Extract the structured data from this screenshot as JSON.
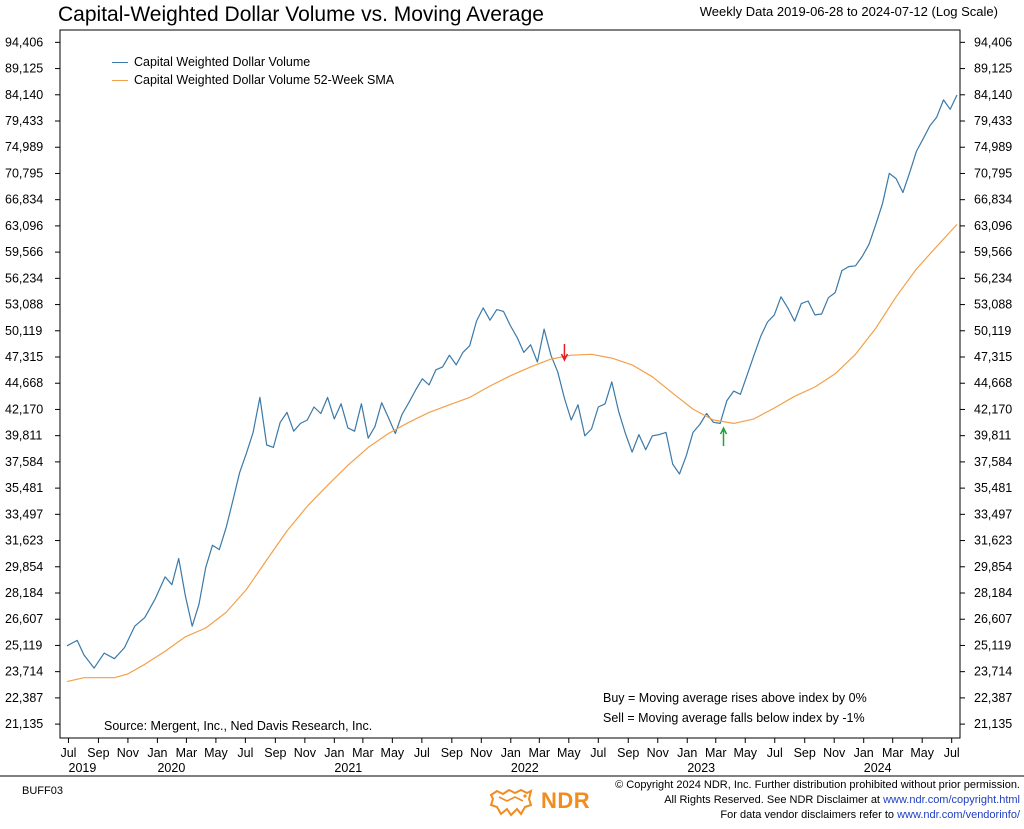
{
  "header": {
    "title": "Capital-Weighted Dollar Volume vs. Moving Average",
    "subtitle": "Weekly Data 2019-06-28 to 2024-07-12 (Log Scale)"
  },
  "legend": {
    "items": [
      {
        "label": "Capital Weighted Dollar Volume",
        "color": "#3a79a8"
      },
      {
        "label": "Capital Weighted Dollar Volume 52-Week SMA",
        "color": "#f4a04a"
      }
    ]
  },
  "source_text": "Source:   Mergent, Inc., Ned Davis Research, Inc.",
  "rules": {
    "buy": "Buy = Moving average rises above index by 0%",
    "sell": "Sell = Moving average falls below index by -1%"
  },
  "footer": {
    "code": "BUFF03",
    "logo_text": "NDR",
    "copyright_line1": "© Copyright 2024 NDR, Inc. Further distribution prohibited without prior permission.",
    "copyright_line2_prefix": "All Rights Reserved. See NDR Disclaimer at ",
    "copyright_line2_link": "www.ndr.com/copyright.html",
    "copyright_line3_prefix": "For data vendor disclaimers refer to ",
    "copyright_line3_link": "www.ndr.com/vendorinfo/"
  },
  "chart_data": {
    "type": "line",
    "scale": "log",
    "ylim": [
      20500,
      97000
    ],
    "y_ticks": [
      21135,
      22387,
      23714,
      25119,
      26607,
      28184,
      29854,
      31623,
      33497,
      35481,
      37584,
      39811,
      42170,
      44668,
      47315,
      50119,
      53088,
      56234,
      59566,
      63096,
      66834,
      70795,
      74989,
      79433,
      84140,
      89125,
      94406
    ],
    "y_tick_labels": [
      "21,135",
      "22,387",
      "23,714",
      "25,119",
      "26,607",
      "28,184",
      "29,854",
      "31,623",
      "33,497",
      "35,481",
      "37,584",
      "39,811",
      "42,170",
      "44,668",
      "47,315",
      "50,119",
      "53,088",
      "56,234",
      "59,566",
      "63,096",
      "66,834",
      "70,795",
      "74,989",
      "79,433",
      "84,140",
      "89,125",
      "94,406"
    ],
    "x_range": [
      "2019-06-28",
      "2024-07-12"
    ],
    "x_ticks": [
      {
        "label": "Jul",
        "date": "2019-07-01"
      },
      {
        "label": "Sep",
        "date": "2019-09-01"
      },
      {
        "label": "Nov",
        "date": "2019-11-01"
      },
      {
        "label": "Jan",
        "date": "2020-01-01"
      },
      {
        "label": "Mar",
        "date": "2020-03-01"
      },
      {
        "label": "May",
        "date": "2020-05-01"
      },
      {
        "label": "Jul",
        "date": "2020-07-01"
      },
      {
        "label": "Sep",
        "date": "2020-09-01"
      },
      {
        "label": "Nov",
        "date": "2020-11-01"
      },
      {
        "label": "Jan",
        "date": "2021-01-01"
      },
      {
        "label": "Mar",
        "date": "2021-03-01"
      },
      {
        "label": "May",
        "date": "2021-05-01"
      },
      {
        "label": "Jul",
        "date": "2021-07-01"
      },
      {
        "label": "Sep",
        "date": "2021-09-01"
      },
      {
        "label": "Nov",
        "date": "2021-11-01"
      },
      {
        "label": "Jan",
        "date": "2022-01-01"
      },
      {
        "label": "Mar",
        "date": "2022-03-01"
      },
      {
        "label": "May",
        "date": "2022-05-01"
      },
      {
        "label": "Jul",
        "date": "2022-07-01"
      },
      {
        "label": "Sep",
        "date": "2022-09-01"
      },
      {
        "label": "Nov",
        "date": "2022-11-01"
      },
      {
        "label": "Jan",
        "date": "2023-01-01"
      },
      {
        "label": "Mar",
        "date": "2023-03-01"
      },
      {
        "label": "May",
        "date": "2023-05-01"
      },
      {
        "label": "Jul",
        "date": "2023-07-01"
      },
      {
        "label": "Sep",
        "date": "2023-09-01"
      },
      {
        "label": "Nov",
        "date": "2023-11-01"
      },
      {
        "label": "Jan",
        "date": "2024-01-01"
      },
      {
        "label": "Mar",
        "date": "2024-03-01"
      },
      {
        "label": "May",
        "date": "2024-05-01"
      },
      {
        "label": "Jul",
        "date": "2024-07-01"
      }
    ],
    "year_labels": [
      {
        "label": "2019",
        "date": "2019-07-01"
      },
      {
        "label": "2020",
        "date": "2020-01-01"
      },
      {
        "label": "2021",
        "date": "2021-01-01"
      },
      {
        "label": "2022",
        "date": "2022-01-01"
      },
      {
        "label": "2023",
        "date": "2023-01-01"
      },
      {
        "label": "2024",
        "date": "2024-01-01"
      }
    ],
    "series": [
      {
        "name": "Capital Weighted Dollar Volume",
        "color": "#3a79a8",
        "points": [
          [
            "2019-06-28",
            25100
          ],
          [
            "2019-07-19",
            25400
          ],
          [
            "2019-08-02",
            24600
          ],
          [
            "2019-08-23",
            23900
          ],
          [
            "2019-09-13",
            24700
          ],
          [
            "2019-10-04",
            24400
          ],
          [
            "2019-10-25",
            25000
          ],
          [
            "2019-11-15",
            26200
          ],
          [
            "2019-12-06",
            26700
          ],
          [
            "2019-12-27",
            27800
          ],
          [
            "2020-01-17",
            29200
          ],
          [
            "2020-01-31",
            28700
          ],
          [
            "2020-02-14",
            30400
          ],
          [
            "2020-02-28",
            28000
          ],
          [
            "2020-03-13",
            26200
          ],
          [
            "2020-03-27",
            27500
          ],
          [
            "2020-04-10",
            29800
          ],
          [
            "2020-04-24",
            31300
          ],
          [
            "2020-05-08",
            31000
          ],
          [
            "2020-05-22",
            32500
          ],
          [
            "2020-06-05",
            34500
          ],
          [
            "2020-06-19",
            36700
          ],
          [
            "2020-07-03",
            38300
          ],
          [
            "2020-07-17",
            40100
          ],
          [
            "2020-07-31",
            43300
          ],
          [
            "2020-08-14",
            39000
          ],
          [
            "2020-08-28",
            38800
          ],
          [
            "2020-09-11",
            41000
          ],
          [
            "2020-09-25",
            41900
          ],
          [
            "2020-10-09",
            40200
          ],
          [
            "2020-10-23",
            40900
          ],
          [
            "2020-11-06",
            41200
          ],
          [
            "2020-11-20",
            42400
          ],
          [
            "2020-12-04",
            41800
          ],
          [
            "2020-12-18",
            43300
          ],
          [
            "2021-01-01",
            41300
          ],
          [
            "2021-01-15",
            42700
          ],
          [
            "2021-01-29",
            40500
          ],
          [
            "2021-02-12",
            40200
          ],
          [
            "2021-02-26",
            42700
          ],
          [
            "2021-03-12",
            39600
          ],
          [
            "2021-03-26",
            40600
          ],
          [
            "2021-04-09",
            42800
          ],
          [
            "2021-04-23",
            41400
          ],
          [
            "2021-05-07",
            40000
          ],
          [
            "2021-05-21",
            41700
          ],
          [
            "2021-06-04",
            42800
          ],
          [
            "2021-06-18",
            44000
          ],
          [
            "2021-07-02",
            45100
          ],
          [
            "2021-07-16",
            44500
          ],
          [
            "2021-07-30",
            46000
          ],
          [
            "2021-08-13",
            46300
          ],
          [
            "2021-08-27",
            47500
          ],
          [
            "2021-09-10",
            46500
          ],
          [
            "2021-09-24",
            47800
          ],
          [
            "2021-10-08",
            48500
          ],
          [
            "2021-10-22",
            51200
          ],
          [
            "2021-11-05",
            52700
          ],
          [
            "2021-11-19",
            51300
          ],
          [
            "2021-12-03",
            52500
          ],
          [
            "2021-12-17",
            52300
          ],
          [
            "2021-12-31",
            50700
          ],
          [
            "2022-01-14",
            49400
          ],
          [
            "2022-01-28",
            47800
          ],
          [
            "2022-02-11",
            48600
          ],
          [
            "2022-02-25",
            46800
          ],
          [
            "2022-03-11",
            50300
          ],
          [
            "2022-03-25",
            47500
          ],
          [
            "2022-04-08",
            45800
          ],
          [
            "2022-04-22",
            43200
          ],
          [
            "2022-05-06",
            41200
          ],
          [
            "2022-05-20",
            42600
          ],
          [
            "2022-06-03",
            39800
          ],
          [
            "2022-06-17",
            40400
          ],
          [
            "2022-07-01",
            42400
          ],
          [
            "2022-07-15",
            42700
          ],
          [
            "2022-07-29",
            44800
          ],
          [
            "2022-08-12",
            42000
          ],
          [
            "2022-08-26",
            40000
          ],
          [
            "2022-09-09",
            38400
          ],
          [
            "2022-09-23",
            39900
          ],
          [
            "2022-10-07",
            38600
          ],
          [
            "2022-10-21",
            39800
          ],
          [
            "2022-11-04",
            39900
          ],
          [
            "2022-11-18",
            40100
          ],
          [
            "2022-12-02",
            37400
          ],
          [
            "2022-12-16",
            36600
          ],
          [
            "2022-12-30",
            38100
          ],
          [
            "2023-01-13",
            40100
          ],
          [
            "2023-01-27",
            40800
          ],
          [
            "2023-02-10",
            41800
          ],
          [
            "2023-02-24",
            41000
          ],
          [
            "2023-03-10",
            40900
          ],
          [
            "2023-03-24",
            43000
          ],
          [
            "2023-04-07",
            43900
          ],
          [
            "2023-04-21",
            43600
          ],
          [
            "2023-05-05",
            45500
          ],
          [
            "2023-05-19",
            47500
          ],
          [
            "2023-06-02",
            49500
          ],
          [
            "2023-06-16",
            51100
          ],
          [
            "2023-06-30",
            51900
          ],
          [
            "2023-07-14",
            54000
          ],
          [
            "2023-07-28",
            52700
          ],
          [
            "2023-08-11",
            51200
          ],
          [
            "2023-08-25",
            53200
          ],
          [
            "2023-09-08",
            53500
          ],
          [
            "2023-09-22",
            51900
          ],
          [
            "2023-10-06",
            52000
          ],
          [
            "2023-10-20",
            53900
          ],
          [
            "2023-11-03",
            54500
          ],
          [
            "2023-11-17",
            57200
          ],
          [
            "2023-12-01",
            57700
          ],
          [
            "2023-12-15",
            57800
          ],
          [
            "2023-12-29",
            59000
          ],
          [
            "2024-01-12",
            60600
          ],
          [
            "2024-01-26",
            63300
          ],
          [
            "2024-02-09",
            66300
          ],
          [
            "2024-02-23",
            70800
          ],
          [
            "2024-03-08",
            70000
          ],
          [
            "2024-03-22",
            67900
          ],
          [
            "2024-04-05",
            70900
          ],
          [
            "2024-04-19",
            74300
          ],
          [
            "2024-05-03",
            76400
          ],
          [
            "2024-05-17",
            78600
          ],
          [
            "2024-05-31",
            80100
          ],
          [
            "2024-06-14",
            83200
          ],
          [
            "2024-06-28",
            81500
          ],
          [
            "2024-07-12",
            84100
          ]
        ]
      },
      {
        "name": "Capital Weighted Dollar Volume 52-Week SMA",
        "color": "#f4a04a",
        "points": [
          [
            "2019-06-28",
            23200
          ],
          [
            "2019-08-02",
            23400
          ],
          [
            "2019-10-04",
            23400
          ],
          [
            "2019-11-01",
            23600
          ],
          [
            "2019-12-06",
            24100
          ],
          [
            "2020-01-17",
            24800
          ],
          [
            "2020-02-28",
            25600
          ],
          [
            "2020-04-10",
            26100
          ],
          [
            "2020-05-22",
            27000
          ],
          [
            "2020-07-03",
            28400
          ],
          [
            "2020-08-14",
            30300
          ],
          [
            "2020-09-25",
            32300
          ],
          [
            "2020-11-06",
            34100
          ],
          [
            "2020-12-18",
            35700
          ],
          [
            "2021-01-29",
            37300
          ],
          [
            "2021-03-12",
            38800
          ],
          [
            "2021-04-23",
            40000
          ],
          [
            "2021-06-04",
            41000
          ],
          [
            "2021-07-16",
            41900
          ],
          [
            "2021-08-27",
            42600
          ],
          [
            "2021-10-08",
            43300
          ],
          [
            "2021-11-19",
            44400
          ],
          [
            "2021-12-31",
            45400
          ],
          [
            "2022-02-11",
            46300
          ],
          [
            "2022-03-25",
            47100
          ],
          [
            "2022-05-06",
            47500
          ],
          [
            "2022-06-17",
            47600
          ],
          [
            "2022-07-29",
            47200
          ],
          [
            "2022-09-09",
            46500
          ],
          [
            "2022-10-21",
            45300
          ],
          [
            "2022-12-02",
            43700
          ],
          [
            "2023-01-13",
            42200
          ],
          [
            "2023-02-24",
            41200
          ],
          [
            "2023-04-07",
            40900
          ],
          [
            "2023-05-19",
            41300
          ],
          [
            "2023-06-30",
            42300
          ],
          [
            "2023-08-11",
            43400
          ],
          [
            "2023-09-22",
            44300
          ],
          [
            "2023-11-03",
            45600
          ],
          [
            "2023-12-15",
            47600
          ],
          [
            "2024-01-26",
            50400
          ],
          [
            "2024-03-08",
            54000
          ],
          [
            "2024-04-19",
            57400
          ],
          [
            "2024-05-31",
            60300
          ],
          [
            "2024-07-12",
            63300
          ]
        ]
      }
    ],
    "signals": [
      {
        "type": "sell",
        "date": "2022-04-22",
        "value": 46800,
        "color": "#e02020"
      },
      {
        "type": "buy",
        "date": "2023-03-17",
        "value": 41200,
        "color": "#22a040"
      }
    ],
    "grid": false,
    "legend_position": "top-left"
  }
}
